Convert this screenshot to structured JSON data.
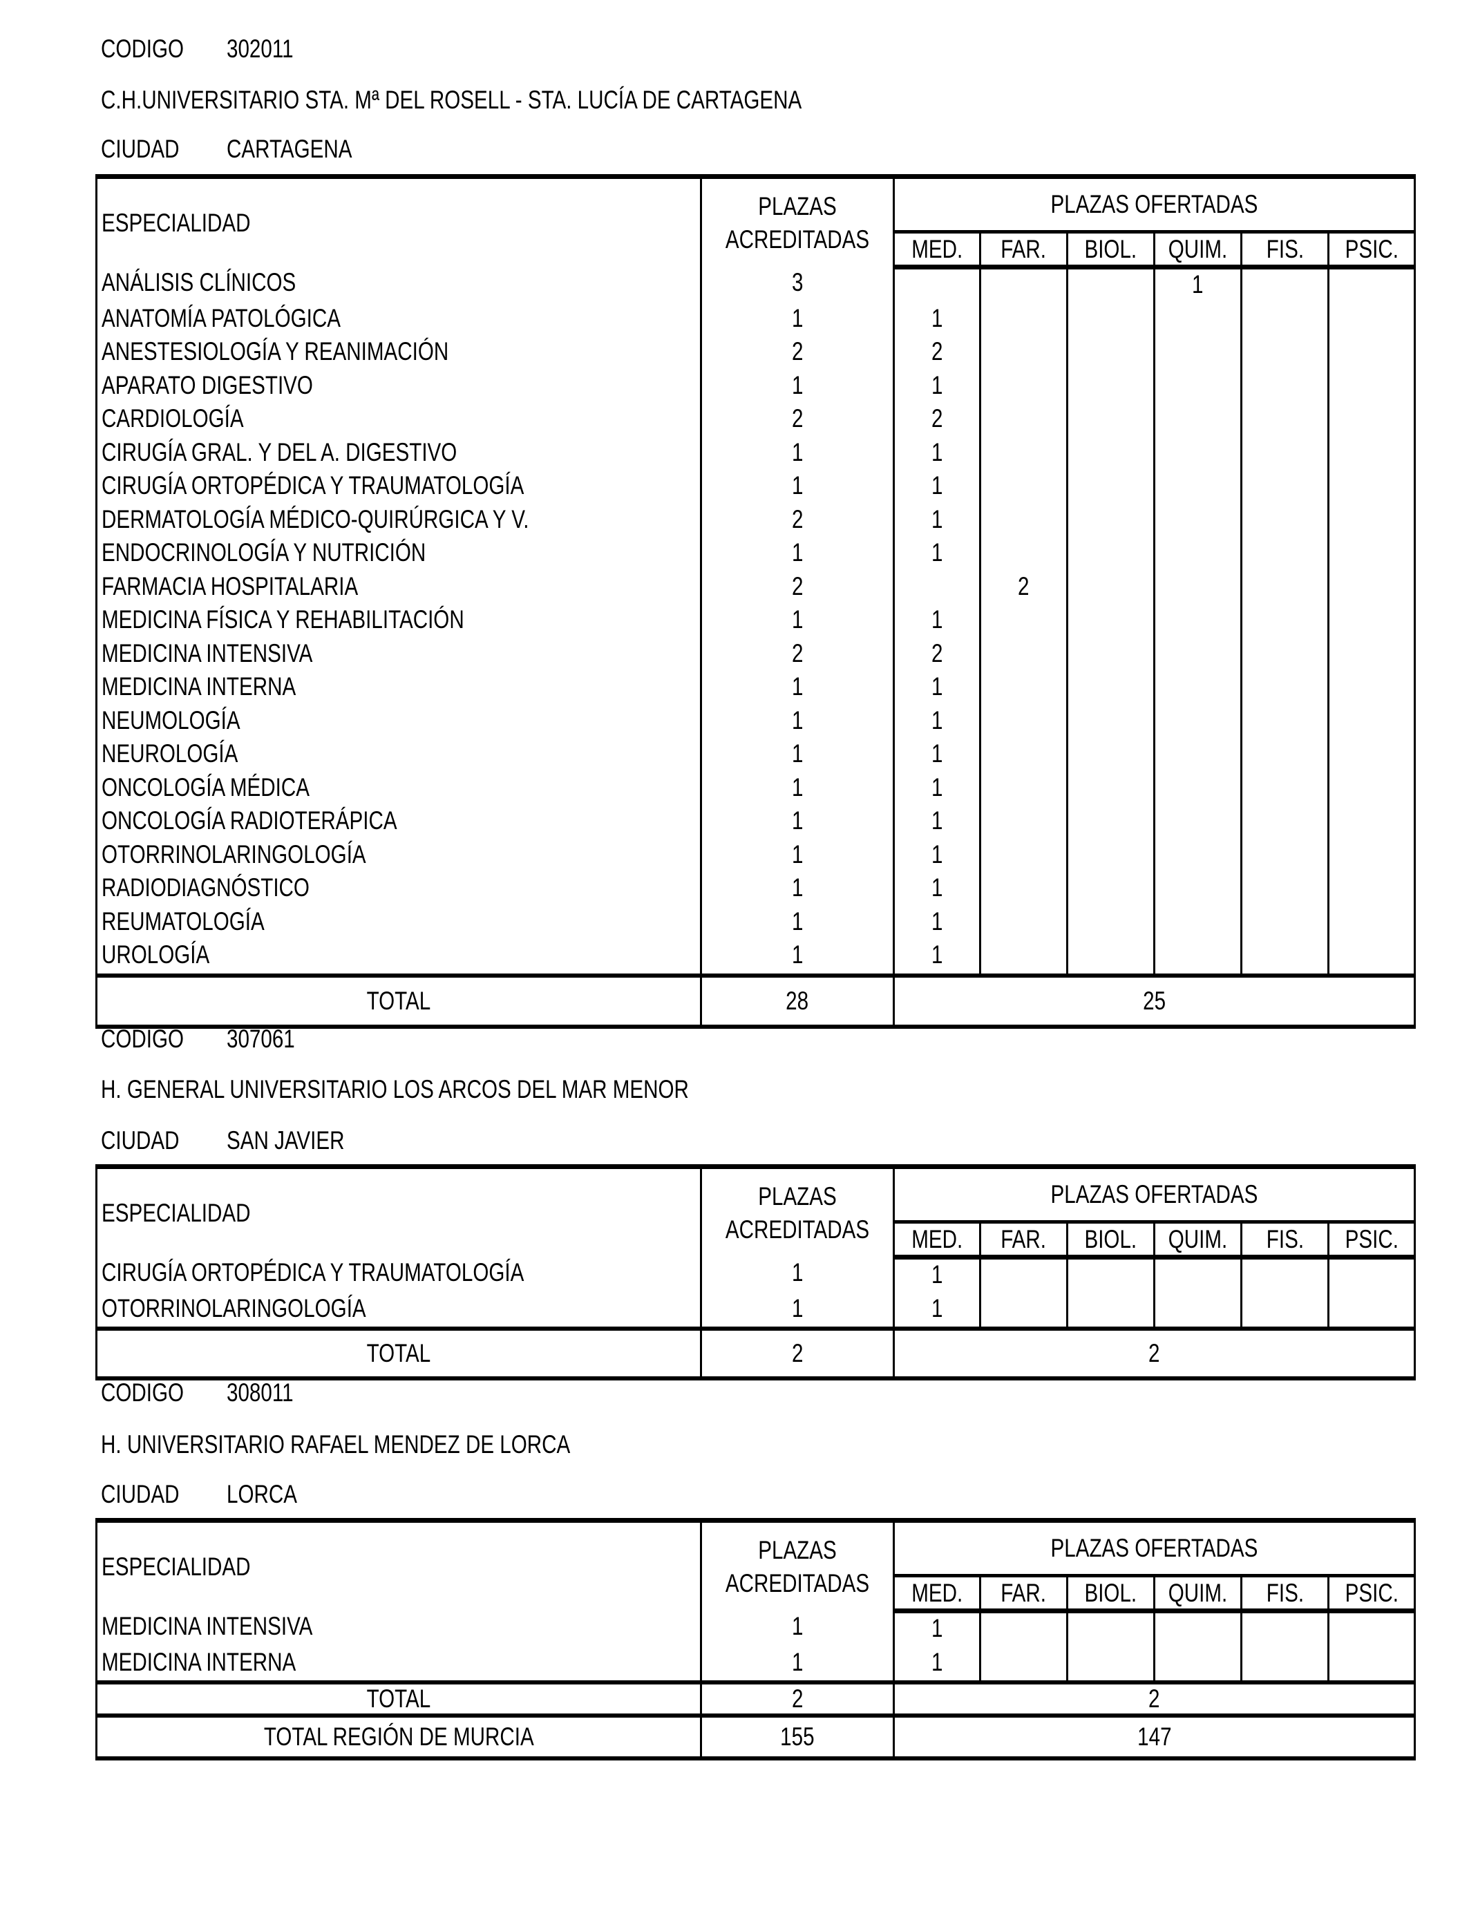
{
  "labels": {
    "codigo": "CODIGO",
    "ciudad": "CIUDAD",
    "especialidad": "ESPECIALIDAD",
    "plazas_acreditadas": "PLAZAS ACREDITADAS",
    "plazas_ofertadas": "PLAZAS OFERTADAS",
    "columns": [
      "MED.",
      "FAR.",
      "BIOL.",
      "QUIM.",
      "FIS.",
      "PSIC."
    ],
    "total": "TOTAL"
  },
  "sections": [
    {
      "codigo": "302011",
      "nombre": "C.H.UNIVERSITARIO STA. Mª DEL ROSELL - STA. LUCÍA DE CARTAGENA",
      "ciudad": "CARTAGENA",
      "rows": [
        {
          "especialidad": "ANÁLISIS CLÍNICOS",
          "acreditadas": "3",
          "ofertadas": [
            "",
            "",
            "",
            "1",
            "",
            ""
          ]
        },
        {
          "especialidad": "ANATOMÍA PATOLÓGICA",
          "acreditadas": "1",
          "ofertadas": [
            "1",
            "",
            "",
            "",
            "",
            ""
          ]
        },
        {
          "especialidad": "ANESTESIOLOGÍA Y REANIMACIÓN",
          "acreditadas": "2",
          "ofertadas": [
            "2",
            "",
            "",
            "",
            "",
            ""
          ]
        },
        {
          "especialidad": "APARATO DIGESTIVO",
          "acreditadas": "1",
          "ofertadas": [
            "1",
            "",
            "",
            "",
            "",
            ""
          ]
        },
        {
          "especialidad": "CARDIOLOGÍA",
          "acreditadas": "2",
          "ofertadas": [
            "2",
            "",
            "",
            "",
            "",
            ""
          ]
        },
        {
          "especialidad": "CIRUGÍA GRAL. Y DEL A. DIGESTIVO",
          "acreditadas": "1",
          "ofertadas": [
            "1",
            "",
            "",
            "",
            "",
            ""
          ]
        },
        {
          "especialidad": "CIRUGÍA ORTOPÉDICA Y TRAUMATOLOGÍA",
          "acreditadas": "1",
          "ofertadas": [
            "1",
            "",
            "",
            "",
            "",
            ""
          ]
        },
        {
          "especialidad": "DERMATOLOGÍA MÉDICO-QUIRÚRGICA Y V.",
          "acreditadas": "2",
          "ofertadas": [
            "1",
            "",
            "",
            "",
            "",
            ""
          ]
        },
        {
          "especialidad": "ENDOCRINOLOGÍA Y NUTRICIÓN",
          "acreditadas": "1",
          "ofertadas": [
            "1",
            "",
            "",
            "",
            "",
            ""
          ]
        },
        {
          "especialidad": "FARMACIA HOSPITALARIA",
          "acreditadas": "2",
          "ofertadas": [
            "",
            "2",
            "",
            "",
            "",
            ""
          ]
        },
        {
          "especialidad": "MEDICINA FÍSICA Y REHABILITACIÓN",
          "acreditadas": "1",
          "ofertadas": [
            "1",
            "",
            "",
            "",
            "",
            ""
          ]
        },
        {
          "especialidad": "MEDICINA INTENSIVA",
          "acreditadas": "2",
          "ofertadas": [
            "2",
            "",
            "",
            "",
            "",
            ""
          ]
        },
        {
          "especialidad": "MEDICINA INTERNA",
          "acreditadas": "1",
          "ofertadas": [
            "1",
            "",
            "",
            "",
            "",
            ""
          ]
        },
        {
          "especialidad": "NEUMOLOGÍA",
          "acreditadas": "1",
          "ofertadas": [
            "1",
            "",
            "",
            "",
            "",
            ""
          ]
        },
        {
          "especialidad": "NEUROLOGÍA",
          "acreditadas": "1",
          "ofertadas": [
            "1",
            "",
            "",
            "",
            "",
            ""
          ]
        },
        {
          "especialidad": "ONCOLOGÍA MÉDICA",
          "acreditadas": "1",
          "ofertadas": [
            "1",
            "",
            "",
            "",
            "",
            ""
          ]
        },
        {
          "especialidad": "ONCOLOGÍA RADIOTERÁPICA",
          "acreditadas": "1",
          "ofertadas": [
            "1",
            "",
            "",
            "",
            "",
            ""
          ]
        },
        {
          "especialidad": "OTORRINOLARINGOLOGÍA",
          "acreditadas": "1",
          "ofertadas": [
            "1",
            "",
            "",
            "",
            "",
            ""
          ]
        },
        {
          "especialidad": "RADIODIAGNÓSTICO",
          "acreditadas": "1",
          "ofertadas": [
            "1",
            "",
            "",
            "",
            "",
            ""
          ]
        },
        {
          "especialidad": "REUMATOLOGÍA",
          "acreditadas": "1",
          "ofertadas": [
            "1",
            "",
            "",
            "",
            "",
            ""
          ]
        },
        {
          "especialidad": "UROLOGÍA",
          "acreditadas": "1",
          "ofertadas": [
            "1",
            "",
            "",
            "",
            "",
            ""
          ]
        }
      ],
      "total_acreditadas": "28",
      "total_ofertadas": "25"
    },
    {
      "codigo": "307061",
      "nombre": "H. GENERAL UNIVERSITARIO LOS ARCOS DEL MAR MENOR",
      "ciudad": "SAN JAVIER",
      "rows": [
        {
          "especialidad": "CIRUGÍA ORTOPÉDICA Y TRAUMATOLOGÍA",
          "acreditadas": "1",
          "ofertadas": [
            "1",
            "",
            "",
            "",
            "",
            ""
          ]
        },
        {
          "especialidad": "OTORRINOLARINGOLOGÍA",
          "acreditadas": "1",
          "ofertadas": [
            "1",
            "",
            "",
            "",
            "",
            ""
          ]
        }
      ],
      "total_acreditadas": "2",
      "total_ofertadas": "2"
    },
    {
      "codigo": "308011",
      "nombre": "H. UNIVERSITARIO RAFAEL MENDEZ DE LORCA",
      "ciudad": "LORCA",
      "rows": [
        {
          "especialidad": "MEDICINA INTENSIVA",
          "acreditadas": "1",
          "ofertadas": [
            "1",
            "",
            "",
            "",
            "",
            ""
          ]
        },
        {
          "especialidad": "MEDICINA INTERNA",
          "acreditadas": "1",
          "ofertadas": [
            "1",
            "",
            "",
            "",
            "",
            ""
          ]
        }
      ],
      "total_acreditadas": "2",
      "total_ofertadas": "2"
    }
  ],
  "region_total": {
    "label": "TOTAL REGIÓN DE MURCIA",
    "acreditadas": "155",
    "ofertadas": "147"
  }
}
